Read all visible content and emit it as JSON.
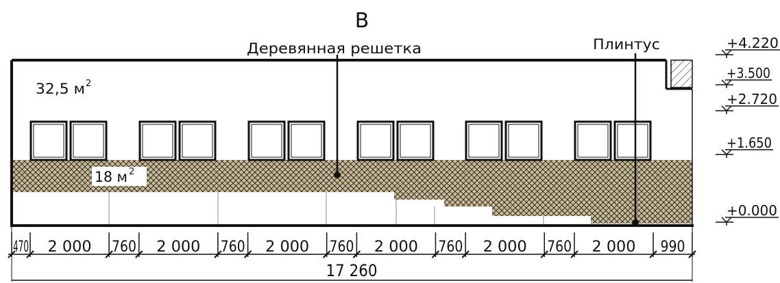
{
  "title": "В",
  "labels": {
    "grille": "Деревянная решетка",
    "plinth": "Плинтус",
    "area_total": "32,5 м",
    "area_grille": "18 м",
    "area_sup": "2"
  },
  "levels": [
    "+4.220",
    "+3.500",
    "+2.720",
    "+1.650",
    "+0.000"
  ],
  "dimensions": [
    "470",
    "2 000",
    "760",
    "2 000",
    "760",
    "2 000",
    "760",
    "2 000",
    "760",
    "2 000",
    "760",
    "2 000",
    "990"
  ],
  "total": "17 260",
  "colors": {
    "line": "#111111",
    "hatch_bg": "#c9bc9b",
    "hatch_line": "#3a3324"
  }
}
